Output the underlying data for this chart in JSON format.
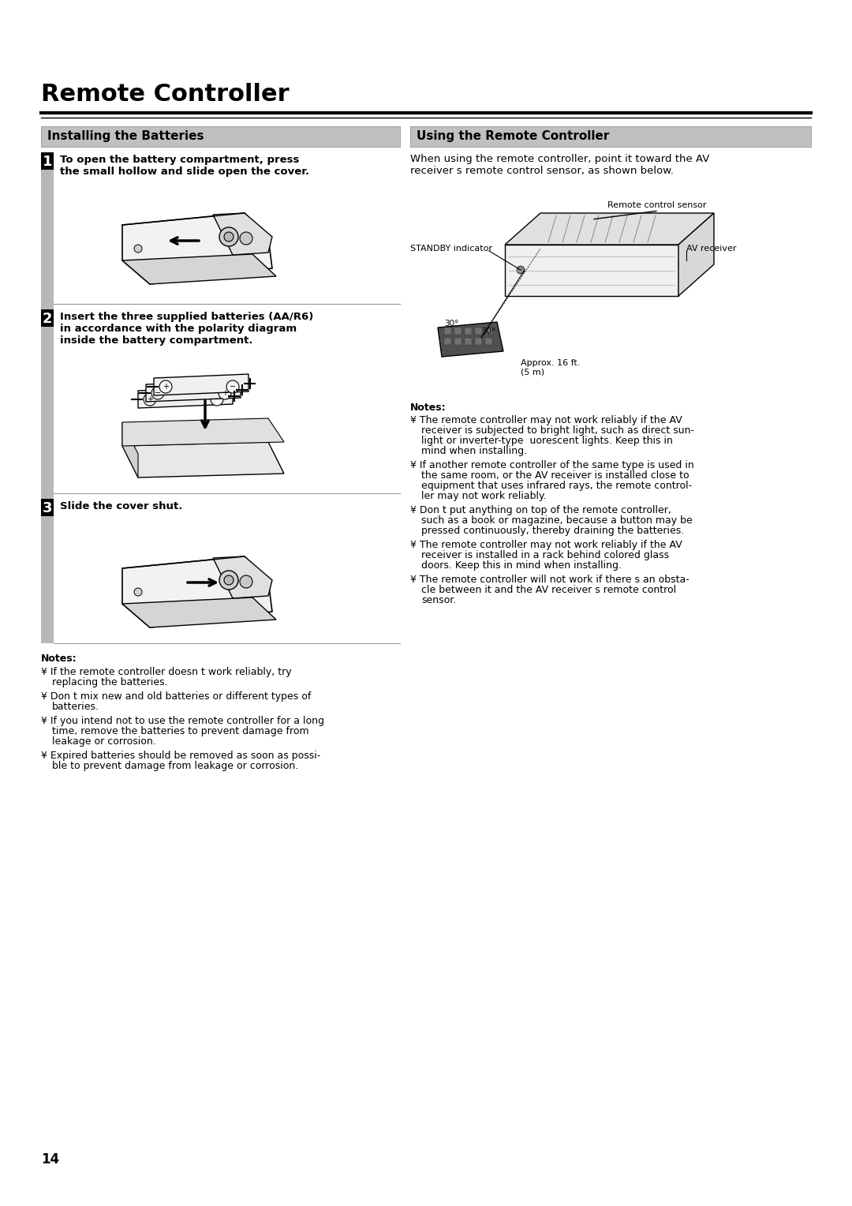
{
  "title": "Remote Controller",
  "page_number": "14",
  "background_color": "#ffffff",
  "left_section_title": "Installing the Batteries",
  "right_section_title": "Using the Remote Controller",
  "header_bg_color": "#c0c0c0",
  "step_bar_color": "#b8b8b8",
  "step1_number": "1",
  "step1_text": "To open the battery compartment, press\nthe small hollow and slide open the cover.",
  "step2_number": "2",
  "step2_text": "Insert the three supplied batteries (AA/R6)\nin accordance with the polarity diagram\ninside the battery compartment.",
  "step3_number": "3",
  "step3_text": "Slide the cover shut.",
  "notes_left_title": "Notes:",
  "notes_left": [
    "If the remote controller doesn t work reliably, try\nreplacing the batteries.",
    "Don t mix new and old batteries or different types of\nbatteries.",
    "If you intend not to use the remote controller for a long\ntime, remove the batteries to prevent damage from\nleakage or corrosion.",
    "Expired batteries should be removed as soon as possi-\nble to prevent damage from leakage or corrosion."
  ],
  "right_intro": "When using the remote controller, point it toward the AV\nreceiver s remote control sensor, as shown below.",
  "diagram_labels": {
    "remote_control_sensor": "Remote control sensor",
    "standby_indicator": "STANDBY indicator",
    "av_receiver": "AV receiver",
    "angle1": "30°",
    "angle2": "30°",
    "approx": "Approx. 16 ft.\n(5 m)"
  },
  "notes_right_title": "Notes:",
  "notes_right": [
    "The remote controller may not work reliably if the AV\nreceiver is subjected to bright light, such as direct sun-\nlight or inverter-type  uorescent lights. Keep this in\nmind when installing.",
    "If another remote controller of the same type is used in\nthe same room, or the AV receiver is installed close to\nequipment that uses infrared rays, the remote control-\nler may not work reliably.",
    "Don t put anything on top of the remote controller,\nsuch as a book or magazine, because a button may be\npressed continuously, thereby draining the batteries.",
    "The remote controller may not work reliably if the AV\nreceiver is installed in a rack behind colored glass\ndoors. Keep this in mind when installing.",
    "The remote controller will not work if there s an obsta-\ncle between it and the AV receiver s remote control\nsensor."
  ],
  "title_fontsize": 22,
  "section_header_fontsize": 11,
  "body_fontsize": 9.5,
  "step_number_fontsize": 13,
  "notes_fontsize": 9
}
